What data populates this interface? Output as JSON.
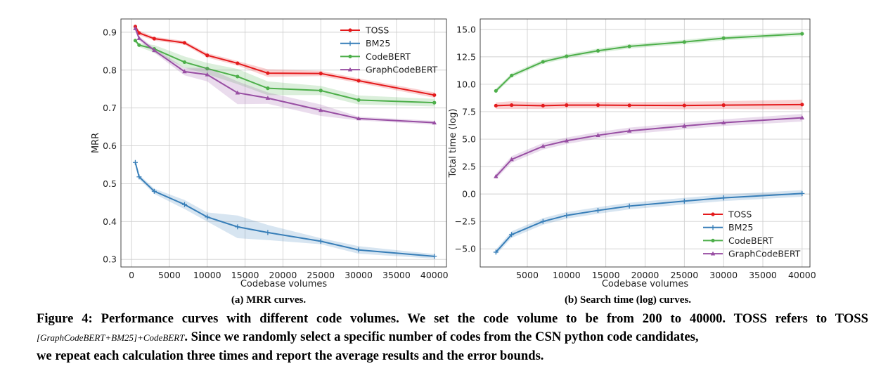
{
  "chart_data": [
    {
      "type": "line",
      "subcaption": "(a) MRR curves.",
      "xlabel": "Codebase volumes",
      "ylabel": "MRR",
      "xlim": [
        -1400,
        41600
      ],
      "ylim": [
        0.28,
        0.935
      ],
      "xticks": [
        0,
        5000,
        10000,
        15000,
        20000,
        25000,
        30000,
        35000,
        40000
      ],
      "yticks": [
        0.3,
        0.4,
        0.5,
        0.6,
        0.7,
        0.8,
        0.9
      ],
      "ytick_labels": [
        "0.3",
        "0.4",
        "0.5",
        "0.6",
        "0.7",
        "0.8",
        "0.9"
      ],
      "grid": true,
      "legend_position": "top-right",
      "series": [
        {
          "name": "TOSS",
          "color": "#e41a1c",
          "marker": "dot",
          "x": [
            500,
            1000,
            3000,
            7000,
            10000,
            14000,
            18000,
            25000,
            30000,
            40000
          ],
          "y": [
            0.915,
            0.898,
            0.883,
            0.872,
            0.839,
            0.818,
            0.792,
            0.791,
            0.772,
            0.734
          ],
          "err": [
            0.006,
            0.006,
            0.005,
            0.005,
            0.006,
            0.006,
            0.01,
            0.007,
            0.006,
            0.007
          ]
        },
        {
          "name": "BM25",
          "color": "#377eb8",
          "marker": "plus",
          "x": [
            500,
            1000,
            3000,
            7000,
            10000,
            14000,
            18000,
            25000,
            30000,
            40000
          ],
          "y": [
            0.556,
            0.518,
            0.48,
            0.445,
            0.412,
            0.386,
            0.371,
            0.348,
            0.325,
            0.308
          ],
          "err": [
            0.004,
            0.006,
            0.007,
            0.012,
            0.012,
            0.03,
            0.02,
            0.008,
            0.01,
            0.006
          ]
        },
        {
          "name": "CodeBERT",
          "color": "#4daf4a",
          "marker": "dot",
          "x": [
            500,
            1000,
            3000,
            7000,
            10000,
            14000,
            18000,
            25000,
            30000,
            40000
          ],
          "y": [
            0.878,
            0.866,
            0.856,
            0.821,
            0.804,
            0.783,
            0.752,
            0.746,
            0.721,
            0.714
          ],
          "err": [
            0.004,
            0.005,
            0.01,
            0.015,
            0.015,
            0.02,
            0.018,
            0.012,
            0.012,
            0.01
          ]
        },
        {
          "name": "GraphCodeBERT",
          "color": "#984ea3",
          "marker": "triangle",
          "x": [
            500,
            1000,
            3000,
            7000,
            10000,
            14000,
            18000,
            25000,
            30000,
            40000
          ],
          "y": [
            0.91,
            0.884,
            0.852,
            0.796,
            0.788,
            0.74,
            0.726,
            0.694,
            0.672,
            0.661
          ],
          "err": [
            0.006,
            0.006,
            0.006,
            0.01,
            0.018,
            0.03,
            0.015,
            0.015,
            0.005,
            0.005
          ]
        }
      ]
    },
    {
      "type": "line",
      "subcaption": "(b) Search time (log) curves.",
      "xlabel": "Codebase volumes",
      "ylabel": "Total time (log)",
      "xlim": [
        -1000,
        41000
      ],
      "ylim": [
        -6.65,
        15.95
      ],
      "xticks": [
        5000,
        10000,
        15000,
        20000,
        25000,
        30000,
        35000,
        40000
      ],
      "yticks": [
        -5,
        -2.5,
        0,
        2.5,
        5,
        7.5,
        10,
        12.5,
        15
      ],
      "ytick_labels": [
        "−5.0",
        "−2.5",
        "0.0",
        "2.5",
        "5.0",
        "7.5",
        "10.0",
        "12.5",
        "15.0"
      ],
      "grid": true,
      "legend_position": "bottom-right",
      "series": [
        {
          "name": "TOSS",
          "color": "#e41a1c",
          "marker": "dot",
          "x": [
            1000,
            3000,
            7000,
            10000,
            14000,
            18000,
            25000,
            30000,
            40000
          ],
          "y": [
            8.05,
            8.1,
            8.05,
            8.1,
            8.1,
            8.08,
            8.07,
            8.1,
            8.15
          ],
          "err": [
            0.3,
            0.35,
            0.3,
            0.3,
            0.3,
            0.3,
            0.35,
            0.35,
            0.45
          ]
        },
        {
          "name": "BM25",
          "color": "#377eb8",
          "marker": "plus",
          "x": [
            1000,
            3000,
            7000,
            10000,
            14000,
            18000,
            25000,
            30000,
            40000
          ],
          "y": [
            -5.3,
            -3.7,
            -2.5,
            -1.95,
            -1.5,
            -1.1,
            -0.65,
            -0.35,
            0.05
          ],
          "err": [
            0.25,
            0.3,
            0.3,
            0.3,
            0.3,
            0.3,
            0.3,
            0.3,
            0.3
          ]
        },
        {
          "name": "CodeBERT",
          "color": "#4daf4a",
          "marker": "dot",
          "x": [
            1000,
            3000,
            7000,
            10000,
            14000,
            18000,
            25000,
            30000,
            40000
          ],
          "y": [
            9.4,
            10.8,
            12.05,
            12.55,
            13.05,
            13.45,
            13.85,
            14.2,
            14.6
          ],
          "err": [
            0.2,
            0.2,
            0.2,
            0.2,
            0.2,
            0.2,
            0.2,
            0.2,
            0.2
          ]
        },
        {
          "name": "GraphCodeBERT",
          "color": "#984ea3",
          "marker": "triangle",
          "x": [
            1000,
            3000,
            7000,
            10000,
            14000,
            18000,
            25000,
            30000,
            40000
          ],
          "y": [
            1.6,
            3.15,
            4.35,
            4.85,
            5.35,
            5.75,
            6.2,
            6.5,
            6.95
          ],
          "err": [
            0.25,
            0.3,
            0.3,
            0.3,
            0.3,
            0.3,
            0.3,
            0.3,
            0.35
          ]
        }
      ]
    }
  ],
  "caption": {
    "line1": "Figure 4: Performance curves with different code volumes. We set the code volume to be from 200 to 40000. TOSS refers to TOSS",
    "subscript": "[GraphCodeBERT+BM25]+CodeBERT",
    "line2_rest": ". Since we randomly select a specific number of codes from the CSN python code candidates,",
    "line3": "we repeat each calculation three times and report the average results and the error bounds."
  }
}
